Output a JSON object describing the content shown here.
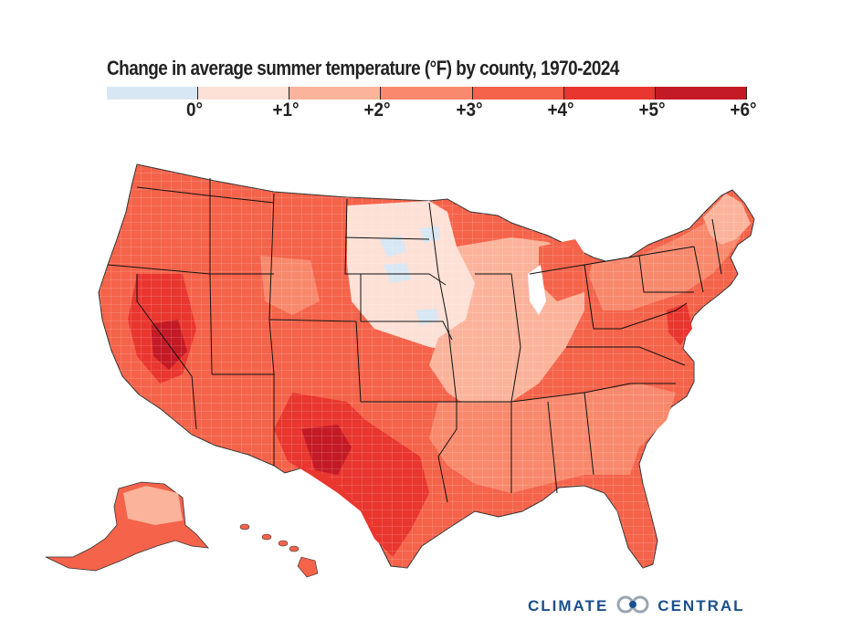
{
  "title": "Change in average summer temperature (°F) by county, 1970-2024",
  "legend": {
    "bins": [
      {
        "from": -1,
        "to": 0,
        "color": "#d8e7f4"
      },
      {
        "from": 0,
        "to": 1,
        "color": "#fde0d6"
      },
      {
        "from": 1,
        "to": 2,
        "color": "#fbb39b"
      },
      {
        "from": 2,
        "to": 3,
        "color": "#f8896d"
      },
      {
        "from": 3,
        "to": 4,
        "color": "#f4634a"
      },
      {
        "from": 4,
        "to": 5,
        "color": "#e9362f"
      },
      {
        "from": 5,
        "to": 6,
        "color": "#c41a26"
      }
    ],
    "ticks": [
      "0°",
      "+1°",
      "+2°",
      "+3°",
      "+4°",
      "+5°",
      "+6°"
    ]
  },
  "map": {
    "regions": [
      "Contiguous United States",
      "Alaska",
      "Hawaii"
    ],
    "state_border_color": "#111111"
  },
  "logo": {
    "left_word": "CLIMATE",
    "right_word": "CENTRAL",
    "color": "#1b4f8c",
    "mark_icon": "two-interlocking-rings-icon"
  }
}
